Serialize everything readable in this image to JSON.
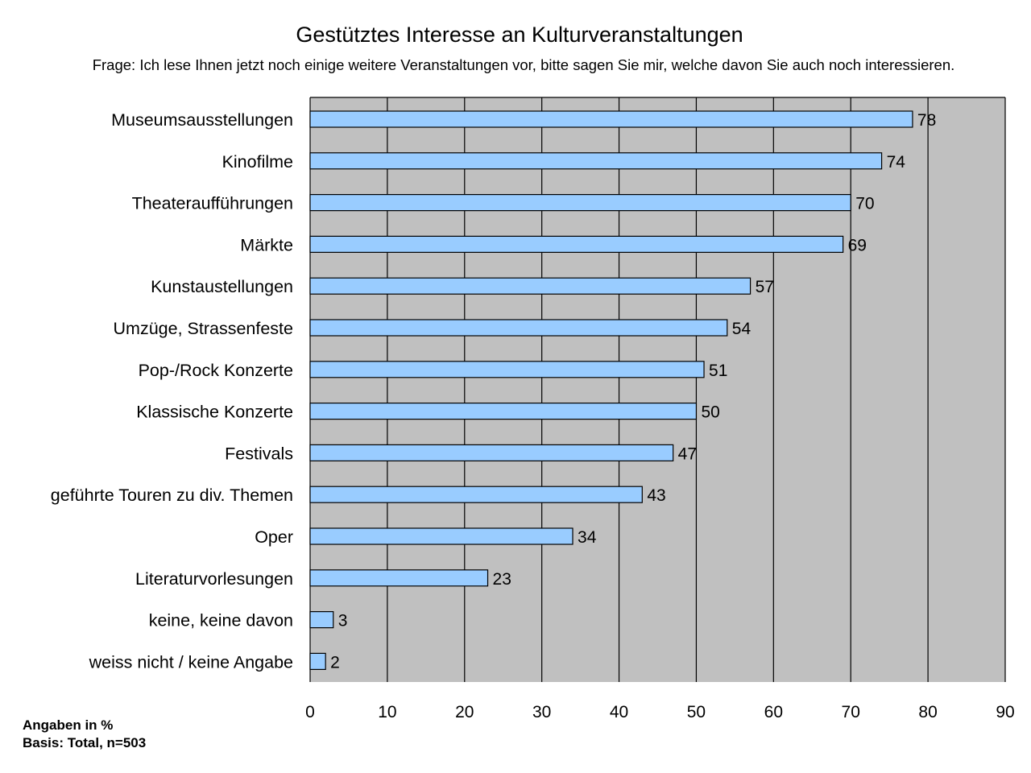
{
  "chart_data": {
    "type": "bar",
    "orientation": "horizontal",
    "title": "Gestütztes Interesse an Kulturveranstaltungen",
    "subtitle": "Frage: Ich lese Ihnen jetzt noch einige weitere Veranstaltungen vor, bitte sagen Sie mir, welche davon Sie auch noch interessieren.",
    "categories": [
      "Museumsausstellungen",
      "Kinofilme",
      "Theateraufführungen",
      "Märkte",
      "Kunstaustellungen",
      "Umzüge, Strassenfeste",
      "Pop-/Rock Konzerte",
      "Klassische Konzerte",
      "Festivals",
      "geführte Touren zu div. Themen",
      "Oper",
      "Literaturvorlesungen",
      "keine, keine davon",
      "weiss nicht / keine Angabe"
    ],
    "values": [
      78,
      74,
      70,
      69,
      57,
      54,
      51,
      50,
      47,
      43,
      34,
      23,
      3,
      2
    ],
    "xlim": [
      0,
      90
    ],
    "xticks": [
      0,
      10,
      20,
      30,
      40,
      50,
      60,
      70,
      80,
      90
    ],
    "grid": true,
    "data_labels": true,
    "legend": "none",
    "bar_color": "#99ccff",
    "plot_background": "#c0c0c0"
  },
  "notes": {
    "line1": "Angaben in %",
    "line2": "Basis: Total, n=503"
  }
}
